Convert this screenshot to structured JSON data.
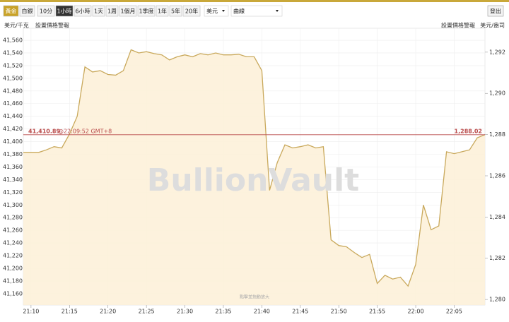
{
  "toolbar": {
    "metals": [
      "黃金",
      "白銀"
    ],
    "ranges": [
      "10分",
      "1小時",
      "6小時",
      "1天",
      "1周",
      "1個月",
      "1季度",
      "1年",
      "5年",
      "20年"
    ],
    "currency": "美元",
    "style": "曲線",
    "logout": "登出"
  },
  "chart_data": {
    "type": "line",
    "ylabel": "美元/千克",
    "y2label": "美元/盎司",
    "alert_left": "設置價格警報",
    "alert_right": "設置價格警報",
    "watermark": "BullionVault",
    "hint": "點擊並拖動放大",
    "x": [
      "21:09",
      "21:10",
      "21:11",
      "21:12",
      "21:13",
      "21:14",
      "21:15",
      "21:16",
      "21:17",
      "21:18",
      "21:19",
      "21:20",
      "21:21",
      "21:22",
      "21:23",
      "21:24",
      "21:25",
      "21:26",
      "21:27",
      "21:28",
      "21:29",
      "21:30",
      "21:31",
      "21:32",
      "21:33",
      "21:34",
      "21:35",
      "21:36",
      "21:37",
      "21:38",
      "21:39",
      "21:40",
      "21:41",
      "21:42",
      "21:43",
      "21:44",
      "21:45",
      "21:46",
      "21:47",
      "21:48",
      "21:49",
      "21:50",
      "21:51",
      "21:52",
      "21:53",
      "21:54",
      "21:55",
      "21:56",
      "21:57",
      "21:58",
      "21:59",
      "22:00",
      "22:01",
      "22:02",
      "22:03",
      "22:04",
      "22:05",
      "22:06",
      "22:07",
      "22:08",
      "22:09"
    ],
    "series": [
      {
        "color": "#c9a95c",
        "fill": "#fdf1d9",
        "values": [
          41383,
          41383,
          41383,
          41387,
          41392,
          41390,
          41412,
          41440,
          41518,
          41510,
          41512,
          41506,
          41505,
          41512,
          41545,
          41540,
          41542,
          41539,
          41537,
          41529,
          41534,
          41537,
          41534,
          41539,
          41537,
          41540,
          41537,
          41537,
          41538,
          41534,
          41534,
          41512,
          41323,
          41367,
          41395,
          41390,
          41392,
          41395,
          41390,
          41392,
          41245,
          41236,
          41234,
          41225,
          41217,
          41222,
          41176,
          41189,
          41183,
          41186,
          41172,
          41206,
          41300,
          41261,
          41267,
          41384,
          41381,
          41384,
          41387,
          41406,
          41411
        ]
      }
    ],
    "xlim": [
      "21:09",
      "22:09"
    ],
    "xticks": [
      "21:10",
      "21:15",
      "21:20",
      "21:25",
      "21:30",
      "21:35",
      "21:40",
      "21:45",
      "21:50",
      "21:55",
      "22:00",
      "22:05"
    ],
    "ylim": [
      41142,
      41579
    ],
    "yticks": [
      {
        "value": 41160,
        "label": "41,160"
      },
      {
        "value": 41180,
        "label": "41,180"
      },
      {
        "value": 41200,
        "label": "41,200"
      },
      {
        "value": 41220,
        "label": "41,220"
      },
      {
        "value": 41240,
        "label": "41,240"
      },
      {
        "value": 41260,
        "label": "41,260"
      },
      {
        "value": 41280,
        "label": "41,280"
      },
      {
        "value": 41300,
        "label": "41,300"
      },
      {
        "value": 41320,
        "label": "41,320"
      },
      {
        "value": 41340,
        "label": "41,340"
      },
      {
        "value": 41360,
        "label": "41,360"
      },
      {
        "value": 41380,
        "label": "41,380"
      },
      {
        "value": 41400,
        "label": "41,400"
      },
      {
        "value": 41420,
        "label": "41,420"
      },
      {
        "value": 41440,
        "label": "41,440"
      },
      {
        "value": 41460,
        "label": "41,460"
      },
      {
        "value": 41480,
        "label": "41,480"
      },
      {
        "value": 41500,
        "label": "41,500"
      },
      {
        "value": 41520,
        "label": "41,520"
      },
      {
        "value": 41540,
        "label": "41,540"
      },
      {
        "value": 41560,
        "label": "41,560"
      }
    ],
    "y2lim": [
      1279.73,
      1293.16
    ],
    "y2ticks": [
      {
        "value": 1280,
        "label": "1,280"
      },
      {
        "value": 1282,
        "label": "1,282"
      },
      {
        "value": 1284,
        "label": "1,284"
      },
      {
        "value": 1286,
        "label": "1,286"
      },
      {
        "value": 1288,
        "label": "1,288"
      },
      {
        "value": 1290,
        "label": "1,290"
      },
      {
        "value": 1292,
        "label": "1,292"
      }
    ],
    "grid": true,
    "current": {
      "value": {
        "value": 41410.89,
        "label": "41,410.89"
      },
      "time_label": "@22:09:52 GMT+8",
      "value_y2": {
        "value": 1288.02,
        "label": "1,288.02"
      },
      "color": "#b94a4a"
    }
  }
}
